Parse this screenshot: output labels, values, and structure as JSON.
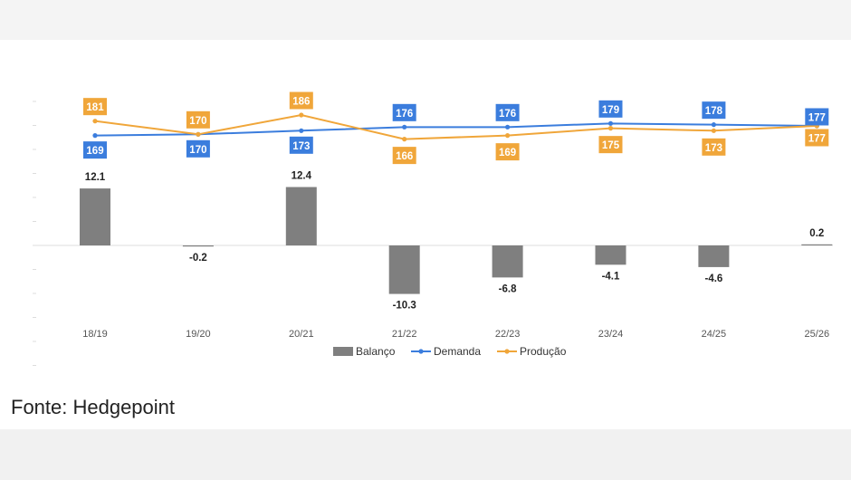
{
  "source": "Fonte: Hedgepoint",
  "colors": {
    "balanco": "#7f7f7f",
    "demanda": "#3b7ddd",
    "producao": "#f0a63a"
  },
  "chart_data": {
    "type": "bar+line",
    "categories": [
      "18/19",
      "19/20",
      "20/21",
      "21/22",
      "22/23",
      "23/24",
      "24/25",
      "25/26"
    ],
    "series": [
      {
        "name": "Balanço",
        "kind": "bar",
        "values": [
          12.1,
          -0.2,
          12.4,
          -10.3,
          -6.8,
          -4.1,
          -4.6,
          0.2
        ]
      },
      {
        "name": "Demanda",
        "kind": "line",
        "values": [
          169,
          170,
          173,
          176,
          176,
          179,
          178,
          177
        ]
      },
      {
        "name": "Produção",
        "kind": "line",
        "values": [
          181,
          170,
          186,
          166,
          169,
          175,
          173,
          177
        ]
      }
    ],
    "legend": {
      "position": "bottom-center"
    },
    "grid": false
  }
}
